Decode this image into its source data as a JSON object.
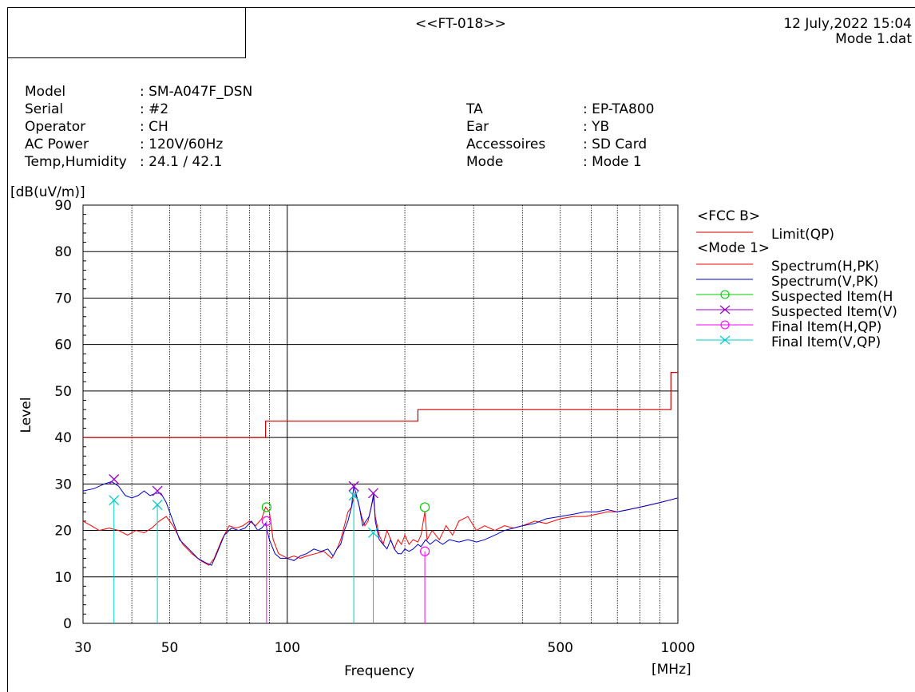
{
  "header": {
    "report_id": "<<FT-018>>",
    "datetime": "12 July,2022 15:04",
    "filename": "Mode 1.dat"
  },
  "info_left": [
    {
      "label": "Model",
      "value": ": SM-A047F_DSN"
    },
    {
      "label": "Serial",
      "value": ": #2"
    },
    {
      "label": "Operator",
      "value": ": CH"
    },
    {
      "label": "AC Power",
      "value": ": 120V/60Hz"
    },
    {
      "label": "Temp,Humidity",
      "value": ": 24.1 / 42.1"
    }
  ],
  "info_right": [
    {
      "label": "TA",
      "value": ": EP-TA800"
    },
    {
      "label": "Ear",
      "value": ": YB"
    },
    {
      "label": "Accessoires",
      "value": ": SD Card"
    },
    {
      "label": "Mode",
      "value": ": Mode 1"
    }
  ],
  "chart_data": {
    "type": "line",
    "xlabel": "Frequency",
    "xunit": "[MHz]",
    "ylabel": "Level",
    "yunit": "[dB(uV/m)]",
    "xscale": "log",
    "xlim": [
      30,
      1000
    ],
    "ylim": [
      0,
      90
    ],
    "x_ticks": [
      30,
      50,
      100,
      500,
      1000
    ],
    "y_ticks": [
      0,
      10,
      20,
      30,
      40,
      50,
      60,
      70,
      80,
      90
    ],
    "grid": true,
    "legend_position": "right",
    "legend": [
      {
        "type": "header",
        "label": "<FCC B>"
      },
      {
        "type": "line",
        "label": "Limit(QP)",
        "color": "#cc0000"
      },
      {
        "type": "header",
        "label": "<Mode 1>"
      },
      {
        "type": "line",
        "label": "Spectrum(H,PK)",
        "color": "#ff0000"
      },
      {
        "type": "line",
        "label": "Spectrum(V,PK)",
        "color": "#0000cc"
      },
      {
        "type": "circle",
        "label": "Suspected Item(H",
        "color": "#00cc00"
      },
      {
        "type": "cross",
        "label": "Suspected Item(V)",
        "color": "#9900cc"
      },
      {
        "type": "circle",
        "label": "Final Item(H,QP)",
        "color": "#ff00ff"
      },
      {
        "type": "cross",
        "label": "Final Item(V,QP)",
        "color": "#00cccc"
      }
    ],
    "limit": {
      "color": "#cc0000",
      "points": [
        [
          30,
          40
        ],
        [
          88,
          40
        ],
        [
          88,
          43.5
        ],
        [
          216,
          43.5
        ],
        [
          216,
          46
        ],
        [
          960,
          46
        ],
        [
          960,
          54
        ],
        [
          1000,
          54
        ]
      ]
    },
    "spectrum_h": {
      "color": "#ff0000",
      "points": [
        [
          30,
          22
        ],
        [
          31.5,
          21
        ],
        [
          33,
          20
        ],
        [
          35,
          20.5
        ],
        [
          37,
          20
        ],
        [
          39,
          19
        ],
        [
          41,
          20
        ],
        [
          43,
          19.5
        ],
        [
          45,
          20.5
        ],
        [
          47,
          22
        ],
        [
          49,
          23
        ],
        [
          51,
          21
        ],
        [
          54,
          17
        ],
        [
          57,
          15
        ],
        [
          60,
          13.5
        ],
        [
          63,
          12.5
        ],
        [
          65,
          14
        ],
        [
          68,
          18
        ],
        [
          71,
          21
        ],
        [
          74,
          20.5
        ],
        [
          77,
          21
        ],
        [
          80,
          22
        ],
        [
          83,
          21
        ],
        [
          86,
          22.5
        ],
        [
          88,
          25
        ],
        [
          90,
          24
        ],
        [
          92,
          18
        ],
        [
          95,
          15
        ],
        [
          100,
          14
        ],
        [
          104,
          14.5
        ],
        [
          108,
          14
        ],
        [
          112,
          14.5
        ],
        [
          118,
          15
        ],
        [
          124,
          15.5
        ],
        [
          130,
          14
        ],
        [
          134,
          16
        ],
        [
          137,
          18
        ],
        [
          140,
          21
        ],
        [
          143,
          24
        ],
        [
          146,
          25
        ],
        [
          149,
          28
        ],
        [
          152,
          26
        ],
        [
          155,
          23
        ],
        [
          158,
          21
        ],
        [
          161,
          22
        ],
        [
          164,
          25
        ],
        [
          166,
          27.5
        ],
        [
          168,
          23
        ],
        [
          172,
          19
        ],
        [
          176,
          17
        ],
        [
          180,
          20
        ],
        [
          184,
          18
        ],
        [
          188,
          16
        ],
        [
          192,
          18
        ],
        [
          196,
          17
        ],
        [
          200,
          19
        ],
        [
          205,
          17
        ],
        [
          210,
          18
        ],
        [
          216,
          17.5
        ],
        [
          220,
          19
        ],
        [
          225,
          24
        ],
        [
          228,
          18
        ],
        [
          235,
          20
        ],
        [
          245,
          18
        ],
        [
          255,
          21
        ],
        [
          265,
          19
        ],
        [
          275,
          22
        ],
        [
          290,
          23
        ],
        [
          305,
          20
        ],
        [
          320,
          21
        ],
        [
          340,
          20
        ],
        [
          360,
          21
        ],
        [
          380,
          20.5
        ],
        [
          400,
          21
        ],
        [
          430,
          22
        ],
        [
          460,
          21.5
        ],
        [
          500,
          22.5
        ],
        [
          540,
          23
        ],
        [
          580,
          23
        ],
        [
          620,
          23.5
        ],
        [
          660,
          24
        ],
        [
          700,
          24
        ],
        [
          750,
          24.5
        ],
        [
          800,
          25
        ],
        [
          850,
          25.5
        ],
        [
          900,
          26
        ],
        [
          950,
          26.5
        ],
        [
          1000,
          27
        ]
      ]
    },
    "spectrum_v": {
      "color": "#0000cc",
      "points": [
        [
          30,
          28.5
        ],
        [
          32,
          29
        ],
        [
          34,
          30
        ],
        [
          35.5,
          30.5
        ],
        [
          37,
          29.5
        ],
        [
          38.5,
          27.5
        ],
        [
          40,
          27
        ],
        [
          41.5,
          27.5
        ],
        [
          43,
          28.5
        ],
        [
          44.5,
          27.5
        ],
        [
          46,
          28
        ],
        [
          47.5,
          28
        ],
        [
          49,
          26
        ],
        [
          51,
          22
        ],
        [
          53,
          18
        ],
        [
          56,
          16
        ],
        [
          59,
          14
        ],
        [
          62,
          13
        ],
        [
          64,
          12.5
        ],
        [
          66,
          15
        ],
        [
          69,
          19
        ],
        [
          72,
          20.5
        ],
        [
          75,
          20
        ],
        [
          78,
          20.5
        ],
        [
          81,
          22
        ],
        [
          84,
          20
        ],
        [
          86,
          20.5
        ],
        [
          88,
          21.5
        ],
        [
          90,
          18
        ],
        [
          93,
          15
        ],
        [
          96,
          14
        ],
        [
          100,
          14
        ],
        [
          104,
          13.5
        ],
        [
          108,
          14.5
        ],
        [
          112,
          15
        ],
        [
          117,
          16
        ],
        [
          122,
          15.5
        ],
        [
          127,
          16
        ],
        [
          131,
          14.5
        ],
        [
          134,
          16
        ],
        [
          137,
          17
        ],
        [
          140,
          20
        ],
        [
          143,
          22
        ],
        [
          146,
          25
        ],
        [
          148,
          29.5
        ],
        [
          150,
          28
        ],
        [
          153,
          25
        ],
        [
          156,
          21
        ],
        [
          159,
          22
        ],
        [
          162,
          23
        ],
        [
          165,
          26
        ],
        [
          166.5,
          28
        ],
        [
          168,
          22
        ],
        [
          172,
          18
        ],
        [
          176,
          17
        ],
        [
          180,
          16
        ],
        [
          184,
          18
        ],
        [
          188,
          16
        ],
        [
          192,
          15
        ],
        [
          196,
          15
        ],
        [
          200,
          16
        ],
        [
          205,
          15.5
        ],
        [
          210,
          16
        ],
        [
          216,
          17
        ],
        [
          220,
          16.5
        ],
        [
          226,
          18
        ],
        [
          232,
          17
        ],
        [
          240,
          18
        ],
        [
          250,
          17
        ],
        [
          260,
          18
        ],
        [
          275,
          17.5
        ],
        [
          290,
          18
        ],
        [
          305,
          17.5
        ],
        [
          320,
          18
        ],
        [
          340,
          19
        ],
        [
          360,
          20
        ],
        [
          380,
          20.5
        ],
        [
          400,
          21
        ],
        [
          430,
          21.5
        ],
        [
          460,
          22.5
        ],
        [
          500,
          23
        ],
        [
          540,
          23.5
        ],
        [
          580,
          24
        ],
        [
          620,
          24
        ],
        [
          660,
          24.5
        ],
        [
          700,
          24
        ],
        [
          750,
          24.5
        ],
        [
          800,
          25
        ],
        [
          850,
          25.5
        ],
        [
          900,
          26
        ],
        [
          950,
          26.5
        ],
        [
          1000,
          27
        ]
      ]
    },
    "suspected_h": {
      "color": "#00cc00",
      "points": [
        [
          88.5,
          25
        ],
        [
          225,
          25
        ]
      ]
    },
    "suspected_v": {
      "color": "#9900cc",
      "points": [
        [
          36,
          31
        ],
        [
          46.5,
          28.5
        ],
        [
          148,
          29.5
        ],
        [
          166,
          28
        ]
      ]
    },
    "final_h": {
      "color": "#ff00ff",
      "points": [
        [
          88.5,
          22
        ],
        [
          225,
          15.5
        ]
      ]
    },
    "final_v": {
      "color": "#00cccc",
      "points": [
        [
          36,
          26.5
        ],
        [
          46.5,
          25.5
        ],
        [
          148,
          27.5
        ],
        [
          166,
          19.5
        ]
      ]
    }
  }
}
